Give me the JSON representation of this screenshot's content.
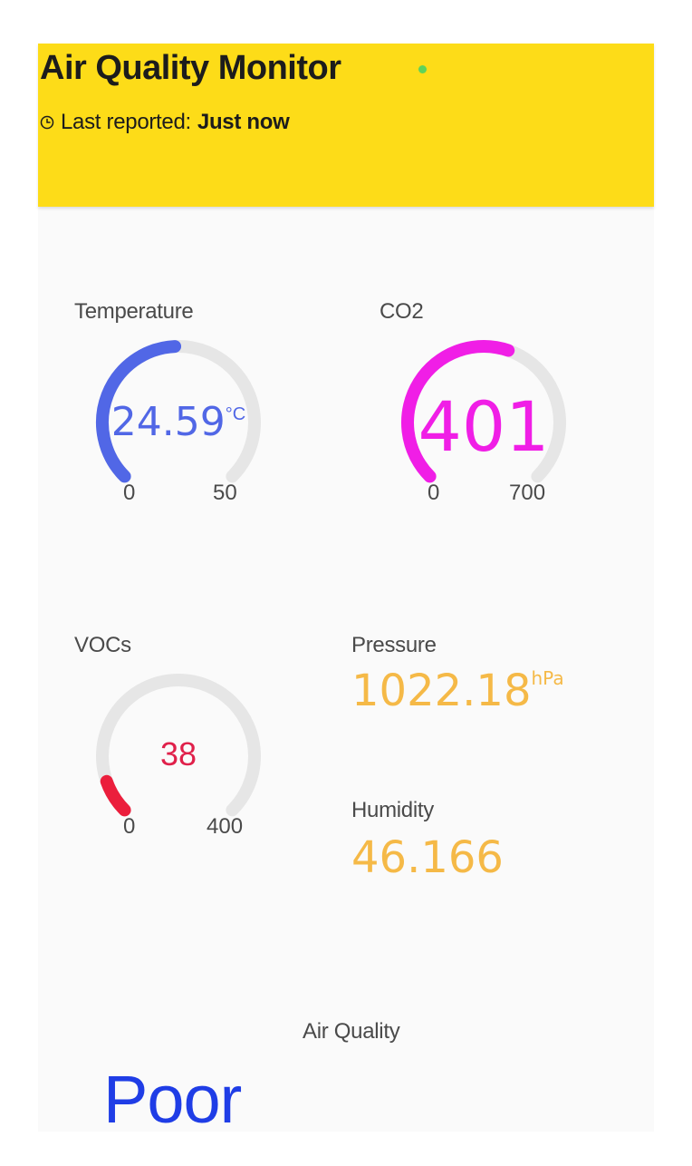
{
  "header": {
    "title": "Air Quality Monitor",
    "last_reported_label": "Last reported:",
    "last_reported_value": "Just now",
    "status_color": "#5ed35a",
    "background": "#fddc18"
  },
  "gauges": {
    "temperature": {
      "label": "Temperature",
      "value": "24.59",
      "unit": "°C",
      "min": "0",
      "max": "50",
      "fraction": 0.49,
      "color": "#5167e6"
    },
    "co2": {
      "label": "CO2",
      "value": "401",
      "min": "0",
      "max": "700",
      "fraction": 0.57,
      "color": "#f01ee6"
    },
    "vocs": {
      "label": "VOCs",
      "value": "38",
      "min": "0",
      "max": "400",
      "fraction": 0.095,
      "color": "#eb1e3c"
    }
  },
  "readings": {
    "pressure": {
      "label": "Pressure",
      "value": "1022.18",
      "unit": "hPa"
    },
    "humidity": {
      "label": "Humidity",
      "value": "46.166"
    }
  },
  "air_quality": {
    "label": "Air Quality",
    "value": "Poor"
  },
  "icons": {
    "clock": "clock-icon"
  }
}
